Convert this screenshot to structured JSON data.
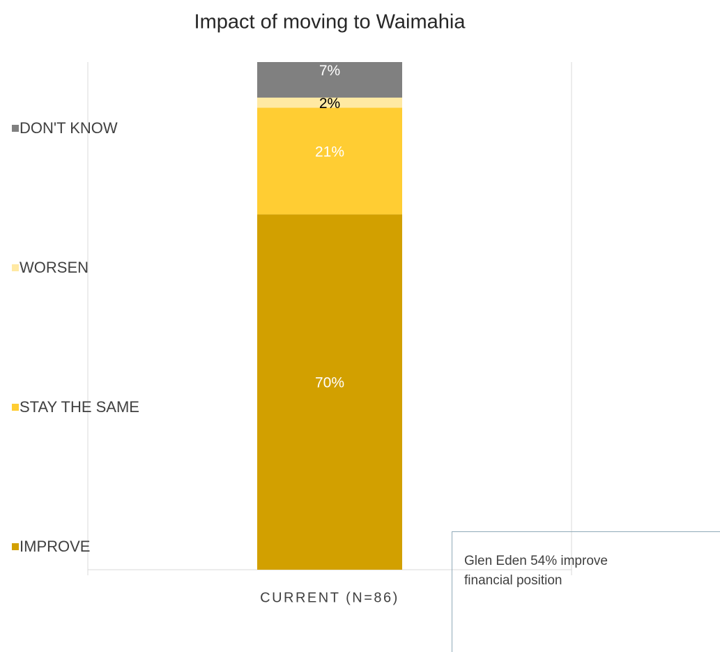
{
  "chart_data": {
    "type": "stacked_bar",
    "title": "Impact of moving to Waimahia",
    "categories": [
      "CURRENT (N=86)"
    ],
    "series": [
      {
        "name": "IMPROVE",
        "color": "#d2a000",
        "label_color": "#ffffff",
        "values": [
          70
        ],
        "value_labels": [
          "70%"
        ]
      },
      {
        "name": "STAY THE SAME",
        "color": "#ffcd33",
        "label_color": "#ffffff",
        "values": [
          21
        ],
        "value_labels": [
          "21%"
        ]
      },
      {
        "name": "WORSEN",
        "color": "#ffe9a3",
        "label_color": "#000000",
        "values": [
          2
        ],
        "value_labels": [
          "2%"
        ]
      },
      {
        "name": "DON'T KNOW",
        "color": "#808080",
        "label_color": "#ffffff",
        "values": [
          7
        ],
        "value_labels": [
          "7%"
        ]
      }
    ],
    "legend": "left",
    "annotation": "Glen Eden 54% improve financial position"
  }
}
